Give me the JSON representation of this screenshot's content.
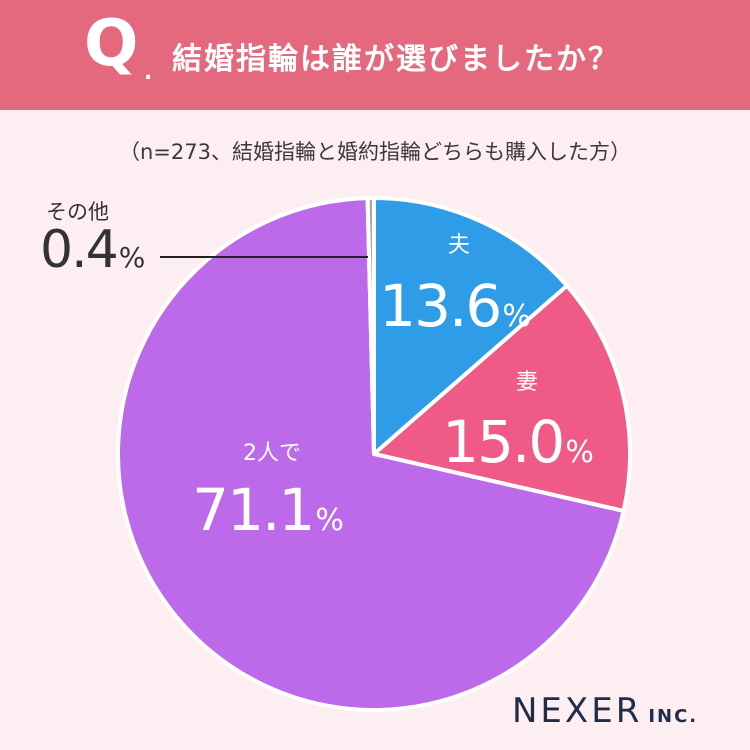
{
  "header": {
    "q_mark": "Q",
    "q_dot": ".",
    "question": "結婚指輪は誰が選びましたか？"
  },
  "note": "（n=273、結婚指輪と婚約指輪どちらも購入した方）",
  "brand": {
    "name": "NEXER",
    "suffix": "INC."
  },
  "colors": {
    "header": "#e5697e",
    "background": "#fdeef1",
    "husband": "#2f9ce8",
    "wife": "#ef5b86",
    "together": "#bc69ea",
    "other": "#a7a7a7"
  },
  "chart_data": {
    "type": "pie",
    "start_angle": "top",
    "direction": "clockwise",
    "slices": [
      {
        "label": "夫",
        "value": 13.6,
        "display": "13.6",
        "unit": "%",
        "color": "#2f9ce8"
      },
      {
        "label": "妻",
        "value": 15.0,
        "display": "15.0",
        "unit": "%",
        "color": "#ef5b86"
      },
      {
        "label": "2人で",
        "value": 71.1,
        "display": "71.1",
        "unit": "%",
        "color": "#bc69ea"
      },
      {
        "label": "その他",
        "value": 0.4,
        "display": "0.4",
        "unit": "%",
        "color": "#a7a7a7"
      }
    ]
  }
}
